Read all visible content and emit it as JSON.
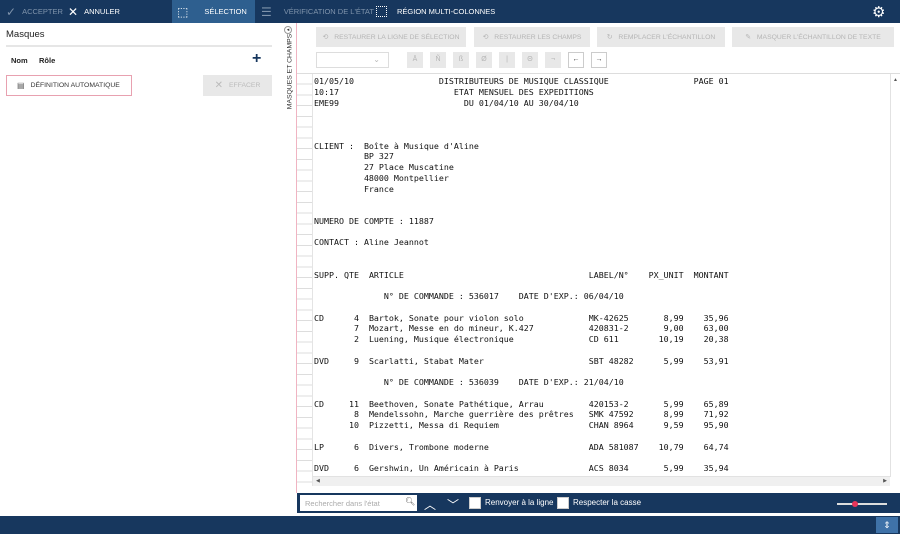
{
  "topbar": {
    "accept": "ACCEPTER",
    "cancel": "ANNULER",
    "tabs": [
      {
        "label": "SÉLECTION",
        "active": true
      },
      {
        "label": "VÉRIFICATION DE L'ÉTAT",
        "active": false
      },
      {
        "label": "RÉGION MULTI-COLONNES",
        "active": false
      }
    ]
  },
  "left_panel": {
    "title": "Masques",
    "columns": [
      "Nom",
      "Rôle"
    ],
    "auto_definition": "DÉFINITION AUTOMATIQUE",
    "clear": "EFFACER",
    "side_label": "MASQUES ET CHAMPS"
  },
  "toolbar": {
    "restore_selection_line": "RESTAURER LA LIGNE DE SÉLECTION",
    "restore_fields": "RESTAURER LES CHAMPS",
    "replace_sample": "REMPLACER L'ÉCHANTILLON",
    "hide_text_sample": "MASQUER L'ÉCHANTILLON DE TEXTE",
    "special_chars": [
      "Ā",
      "Ñ",
      "ß",
      "Ø",
      "|",
      "Θ",
      "¬"
    ],
    "arrow_left": "←",
    "arrow_right": "→"
  },
  "report": {
    "lines": [
      {
        "parts": [
          [
            "01/05/10",
            0
          ],
          [
            "DISTRIBUTEURS DE MUSIQUE CLASSIQUE",
            25
          ],
          [
            "PAGE 01",
            76
          ]
        ]
      },
      {
        "parts": [
          [
            "10:17",
            0
          ],
          [
            "ETAT MENSUEL DES EXPEDITIONS",
            28
          ]
        ]
      },
      {
        "parts": [
          [
            "EME99",
            0
          ],
          [
            "DU 01/04/10 AU 30/04/10",
            30
          ]
        ]
      },
      {
        "parts": []
      },
      {
        "parts": []
      },
      {
        "parts": []
      },
      {
        "parts": [
          [
            "CLIENT :",
            0
          ],
          [
            "Boîte à Musique d'Aline",
            10
          ]
        ]
      },
      {
        "parts": [
          [
            "BP 327",
            10
          ]
        ]
      },
      {
        "parts": [
          [
            "27 Place Muscatine",
            10
          ]
        ]
      },
      {
        "parts": [
          [
            "48000 Montpellier",
            10
          ]
        ]
      },
      {
        "parts": [
          [
            "France",
            10
          ]
        ]
      },
      {
        "parts": []
      },
      {
        "parts": []
      },
      {
        "parts": [
          [
            "NUMERO DE COMPTE : 11887",
            0
          ]
        ]
      },
      {
        "parts": []
      },
      {
        "parts": [
          [
            "CONTACT : Aline Jeannot",
            0
          ]
        ]
      },
      {
        "parts": []
      },
      {
        "parts": []
      },
      {
        "parts": [
          [
            "SUPP. QTE",
            0
          ],
          [
            "ARTICLE",
            11
          ],
          [
            "LABEL/N°",
            55
          ],
          [
            "PX_UNIT",
            67
          ],
          [
            "MONTANT",
            76
          ]
        ]
      },
      {
        "parts": []
      },
      {
        "parts": [
          [
            "N° DE COMMANDE : 536017",
            14
          ],
          [
            "DATE D'EXP.: 06/04/10",
            41
          ]
        ]
      },
      {
        "parts": []
      },
      {
        "row": [
          "CD",
          "4",
          "Bartok, Sonate pour violon solo",
          "MK-42625",
          "8,99",
          "35,96"
        ]
      },
      {
        "row": [
          "",
          "7",
          "Mozart, Messe en do mineur, K.427",
          "420831-2",
          "9,00",
          "63,00"
        ]
      },
      {
        "row": [
          "",
          "2",
          "Luening, Musique électronique",
          "CD 611",
          "10,19",
          "20,38"
        ]
      },
      {
        "parts": []
      },
      {
        "row": [
          "DVD",
          "9",
          "Scarlatti, Stabat Mater",
          "SBT 48282",
          "5,99",
          "53,91"
        ]
      },
      {
        "parts": []
      },
      {
        "parts": [
          [
            "N° DE COMMANDE : 536039",
            14
          ],
          [
            "DATE D'EXP.: 21/04/10",
            41
          ]
        ]
      },
      {
        "parts": []
      },
      {
        "row": [
          "CD",
          "11",
          "Beethoven, Sonate Pathétique, Arrau",
          "420153-2",
          "5,99",
          "65,89"
        ]
      },
      {
        "row": [
          "",
          "8",
          "Mendelssohn, Marche guerrière des prêtres",
          "SMK 47592",
          "8,99",
          "71,92"
        ]
      },
      {
        "row": [
          "",
          "10",
          "Pizzetti, Messa di Requiem",
          "CHAN 8964",
          "9,59",
          "95,90"
        ]
      },
      {
        "parts": []
      },
      {
        "row": [
          "LP",
          "6",
          "Divers, Trombone moderne",
          "ADA 581087",
          "10,79",
          "64,74"
        ]
      },
      {
        "parts": []
      },
      {
        "row": [
          "DVD",
          "6",
          "Gershwin, Un Américain à Paris",
          "ACS 8034",
          "5,99",
          "35,94"
        ]
      }
    ]
  },
  "searchbar": {
    "placeholder": "Rechercher dans l'état",
    "wrap": "Renvoyer à la ligne",
    "match_case": "Respecter la casse",
    "zoom_level": 0.3
  },
  "colors": {
    "navy": "#17375e",
    "active_tab": "#2e5f8f",
    "accent": "#e8355a"
  }
}
